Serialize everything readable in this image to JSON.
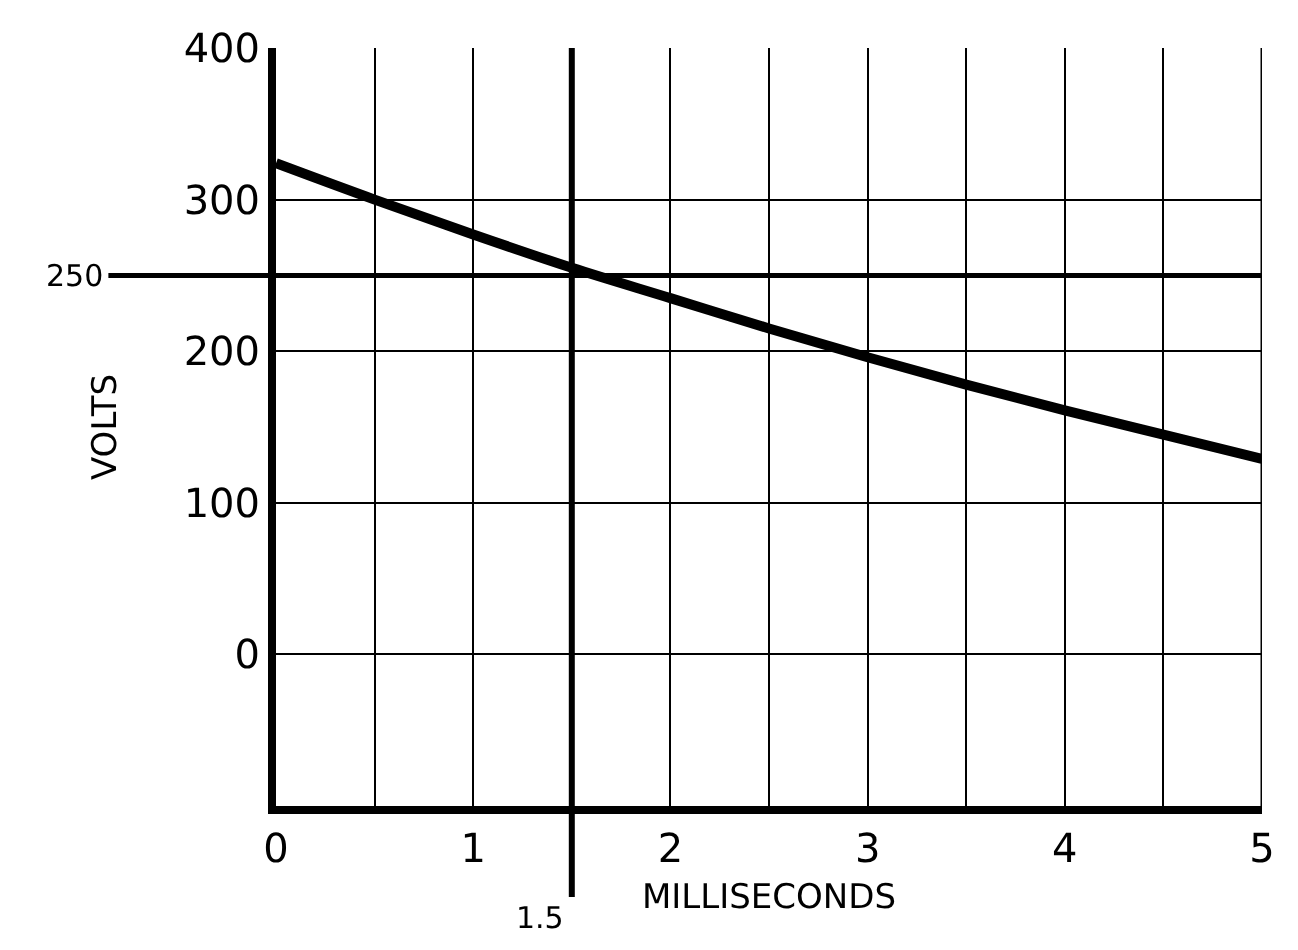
{
  "chart_data": {
    "type": "line",
    "xlabel": "MILLISECONDS",
    "ylabel": "VOLTS",
    "x": [
      0,
      0.5,
      1,
      1.5,
      2,
      2.5,
      3,
      3.5,
      4,
      4.5,
      5
    ],
    "series": [
      {
        "color": "#000000",
        "values": [
          324,
          300,
          277,
          255,
          235,
          215,
          196,
          178,
          161,
          145,
          129
        ]
      }
    ],
    "xlim": [
      0,
      5
    ],
    "ylim": [
      -100,
      400
    ],
    "xticks": [
      0,
      {
        "value": 0.5,
        "label": null
      },
      1,
      {
        "value": 1.5,
        "label": null
      },
      2,
      {
        "value": 2.5,
        "label": null
      },
      3,
      {
        "value": 3.5,
        "label": null
      },
      4,
      {
        "value": 4.5,
        "label": null
      },
      5
    ],
    "yticks": [
      0,
      100,
      200,
      300,
      400
    ],
    "ref_lines": [
      {
        "axis": "y",
        "value": 250,
        "label": "250"
      },
      {
        "axis": "x",
        "value": 1.5,
        "label": "1.5"
      }
    ],
    "grid": true,
    "marker": "none",
    "line_style": "solid"
  }
}
